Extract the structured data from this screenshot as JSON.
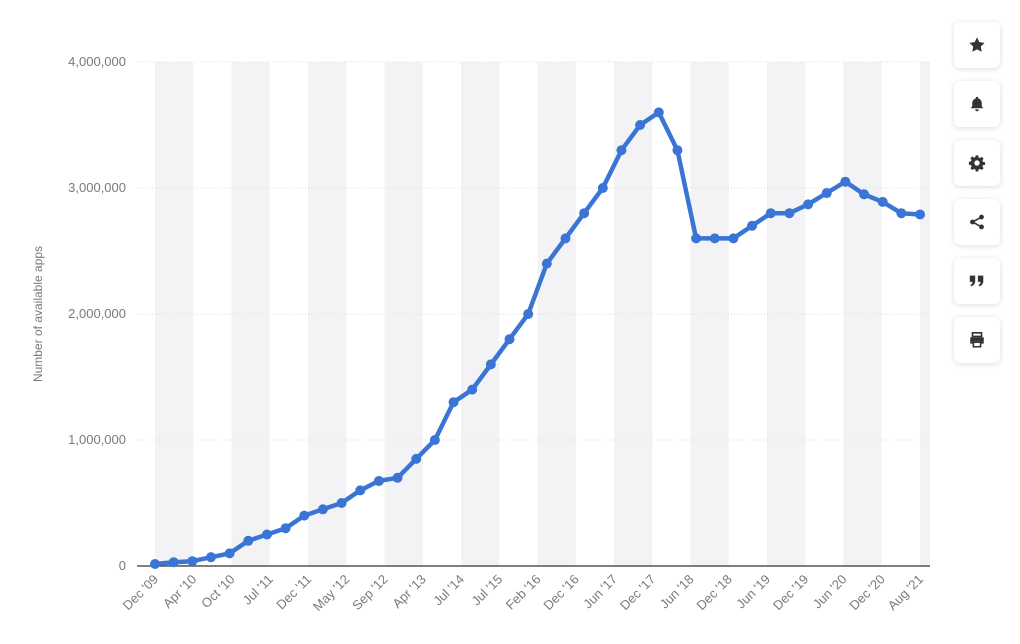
{
  "chart_data": {
    "type": "line",
    "title": "",
    "xlabel": "",
    "ylabel": "Number of available apps",
    "ylim": [
      0,
      4000000
    ],
    "yticks": [
      0,
      1000000,
      2000000,
      3000000,
      4000000
    ],
    "ytick_labels": [
      "0",
      "1,000,000",
      "2,000,000",
      "3,000,000",
      "4,000,000"
    ],
    "xtick_labels": [
      "Dec '09",
      "Apr '10",
      "Oct '10",
      "Jul '11",
      "Dec '11",
      "May '12",
      "Sep '12",
      "Apr '13",
      "Jul '14",
      "Jul '15",
      "Feb '16",
      "Dec '16",
      "Jun '17",
      "Dec '17",
      "Jun '18",
      "Dec '18",
      "Jun '19",
      "Dec '19",
      "Jun '20",
      "Dec '20",
      "Aug '21"
    ],
    "grid": true,
    "series_color": "#3a75d6",
    "series": [
      {
        "values": [
          16000,
          30000,
          38000,
          70000,
          100000,
          200000,
          250000,
          300000,
          400000,
          450000,
          500000,
          600000,
          675000,
          700000,
          850000,
          1000000,
          1300000,
          1400000,
          1600000,
          1800000,
          2000000,
          2400000,
          2600000,
          2800000,
          3000000,
          3300000,
          3500000,
          3600000,
          3300000,
          2600000,
          2600000,
          2600000,
          2700000,
          2800000,
          2800000,
          2870000,
          2960000,
          3050000,
          2950000,
          2890000,
          2800000,
          2790000
        ]
      }
    ]
  },
  "toolbar": {
    "buttons": [
      {
        "name": "bookmark-button",
        "icon": "star-icon"
      },
      {
        "name": "notification-button",
        "icon": "bell-icon"
      },
      {
        "name": "settings-button",
        "icon": "gear-icon"
      },
      {
        "name": "share-button",
        "icon": "share-icon"
      },
      {
        "name": "cite-button",
        "icon": "quote-icon"
      },
      {
        "name": "print-button",
        "icon": "printer-icon"
      }
    ]
  }
}
